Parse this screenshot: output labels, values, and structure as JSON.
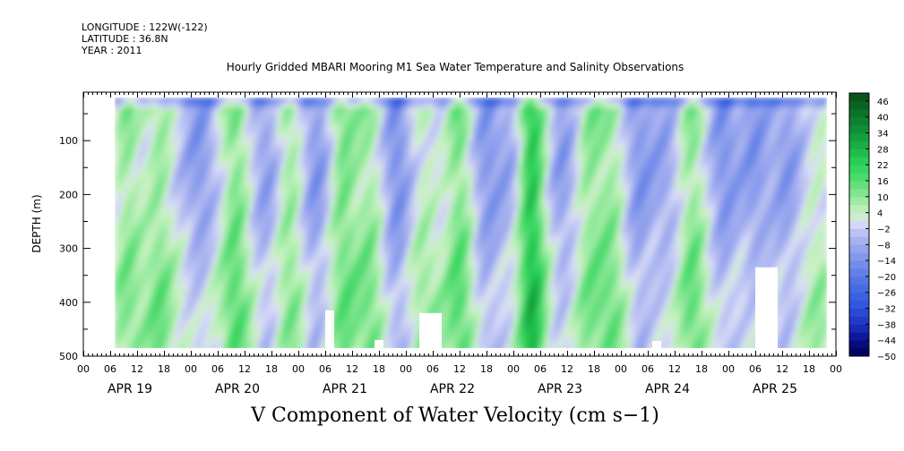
{
  "header": {
    "longitude": "LONGITUDE : 122W(-122)",
    "latitude": "LATITUDE : 36.8N",
    "year": "YEAR : 2011"
  },
  "chart_data": {
    "type": "heatmap",
    "title": "Hourly Gridded MBARI Mooring M1 Sea Water Temperature and Salinity Observations",
    "xlabel": "",
    "ylabel": "DEPTH (m)",
    "footer_label": "V Component of Water Velocity (cm s−1)",
    "x_hour_ticks": [
      "00",
      "06",
      "12",
      "18",
      "00",
      "06",
      "12",
      "18",
      "00",
      "06",
      "12",
      "18",
      "00",
      "06",
      "12",
      "18",
      "00",
      "06",
      "12",
      "18",
      "00",
      "06",
      "12",
      "18",
      "00",
      "06",
      "12",
      "18",
      "00"
    ],
    "x_day_labels": [
      "APR 19",
      "APR 20",
      "APR 21",
      "APR 22",
      "APR 23",
      "APR 24",
      "APR 25"
    ],
    "x_range_hours": [
      0,
      168
    ],
    "data_x_range_hours": [
      7,
      166
    ],
    "y_ticks": [
      100,
      200,
      300,
      400,
      500
    ],
    "ylim": [
      10,
      500
    ],
    "data_depth_range": [
      20,
      485
    ],
    "colorbar": {
      "labels": [
        "46",
        "40",
        "34",
        "28",
        "22",
        "16",
        "10",
        "4",
        "-2",
        "-8",
        "-14",
        "-20",
        "-26",
        "-32",
        "-38",
        "-44",
        "-50"
      ],
      "range": [
        -50,
        49
      ],
      "step": 3
    },
    "colors": {
      "strong_positive": "#0a5a14",
      "positive": "#2ed35a",
      "weak_positive": "#c8f2c0",
      "weak_negative": "#c8cdf5",
      "negative": "#5a78e6",
      "strong_negative": "#00006e"
    },
    "missing_data_regions": [
      {
        "day": "APR 21",
        "hours": [
          54,
          56
        ],
        "depth": [
          415,
          485
        ]
      },
      {
        "day": "APR 21",
        "hours": [
          65,
          67
        ],
        "depth": [
          470,
          485
        ]
      },
      {
        "day": "APR 22",
        "hours": [
          75,
          80
        ],
        "depth": [
          420,
          485
        ]
      },
      {
        "day": "APR 24",
        "hours": [
          127,
          129
        ],
        "depth": [
          472,
          485
        ]
      },
      {
        "day": "APR 25",
        "hours": [
          150,
          155
        ],
        "depth": [
          335,
          485
        ]
      }
    ],
    "features": [
      {
        "hour": 100,
        "depth": [
          30,
          485
        ],
        "v": 28,
        "note": "narrow strong positive band near APR 23 04h"
      }
    ]
  }
}
